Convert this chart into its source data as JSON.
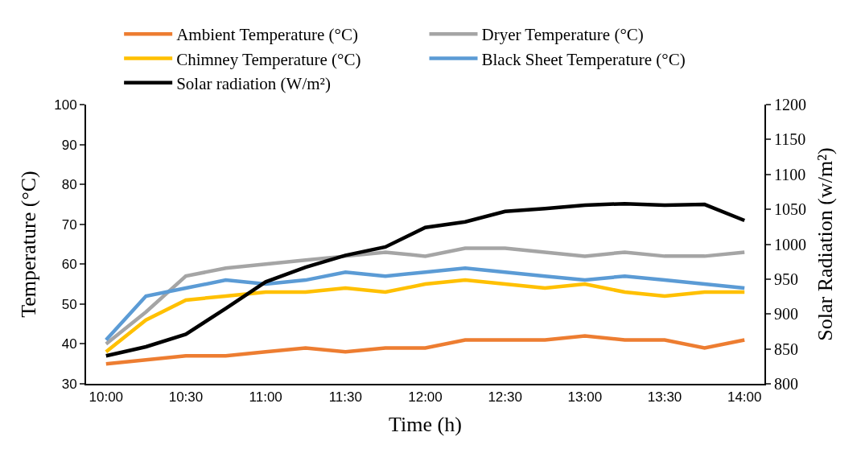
{
  "chart_data": {
    "type": "line",
    "xlabel": "Time (h)",
    "ylabel": "Temperature (°C)",
    "y2label": "Solar Radiation (w/m²)",
    "categories": [
      "10:00",
      null,
      "10:30",
      null,
      "11:00",
      null,
      "11:30",
      null,
      "12:00",
      null,
      "12:30",
      null,
      "13:00",
      null,
      "13:30",
      null,
      "14:00"
    ],
    "series": [
      {
        "name": "Ambient Temperature (°C)",
        "color": "#ed7d31",
        "values": [
          35,
          36,
          37,
          37,
          38,
          39,
          38,
          39,
          39,
          41,
          41,
          41,
          42,
          41,
          41,
          39,
          41
        ]
      },
      {
        "name": "Dryer Temperature (°C)",
        "color": "#a5a5a5",
        "values": [
          40,
          48,
          57,
          59,
          60,
          61,
          62,
          63,
          62,
          64,
          64,
          63,
          62,
          63,
          62,
          62,
          63
        ]
      },
      {
        "name": "Chimney Temperature (°C)",
        "color": "#ffc000",
        "values": [
          38,
          46,
          51,
          52,
          53,
          53,
          54,
          53,
          55,
          56,
          55,
          54,
          55,
          53,
          52,
          53,
          53
        ]
      },
      {
        "name": "Black Sheet Temperature (°C)",
        "color": "#5b9bd5",
        "values": [
          41,
          52,
          54,
          56,
          55,
          56,
          58,
          57,
          58,
          59,
          58,
          57,
          56,
          57,
          56,
          55,
          54
        ]
      },
      {
        "name": "Solar radiation (W/m²)",
        "color": "#000000",
        "axis": "y2",
        "values": [
          840,
          853,
          871,
          908,
          946,
          967,
          984,
          996,
          1024,
          1032,
          1047,
          1051,
          1056,
          1058,
          1056,
          1057,
          1034
        ]
      }
    ],
    "ylim": [
      30,
      100
    ],
    "yticks": [
      30,
      40,
      50,
      60,
      70,
      80,
      90,
      100
    ],
    "y2lim": [
      800,
      1200
    ],
    "y2ticks": [
      800,
      850,
      900,
      950,
      1000,
      1050,
      1100,
      1150,
      1200
    ],
    "legend": "top",
    "marker": "none",
    "line_style": "solid"
  }
}
